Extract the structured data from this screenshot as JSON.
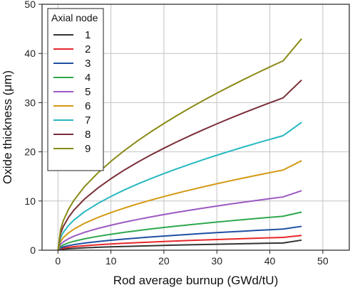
{
  "chart_data": {
    "type": "line",
    "xlabel": "Rod average burnup (GWd/tU)",
    "ylabel": "Oxide thickness (μm)",
    "xlim": [
      -3,
      55
    ],
    "ylim": [
      0,
      50
    ],
    "xticks": [
      0,
      10,
      20,
      30,
      40,
      50
    ],
    "yticks": [
      0,
      10,
      20,
      30,
      40,
      50
    ],
    "grid": true,
    "legend": {
      "title": "Axial node",
      "placement": "top-left"
    },
    "x": [
      0,
      0.5,
      1,
      2,
      3,
      5,
      7.5,
      10,
      12.5,
      15,
      17.5,
      20,
      22.5,
      25,
      27.5,
      30,
      32.5,
      35,
      37.5,
      40,
      42.5,
      46
    ],
    "series": [
      {
        "name": "1",
        "color": "#333333",
        "values": [
          0,
          0.15,
          0.22,
          0.3,
          0.37,
          0.48,
          0.59,
          0.68,
          0.76,
          0.84,
          0.91,
          0.97,
          1.04,
          1.1,
          1.16,
          1.21,
          1.27,
          1.32,
          1.37,
          1.42,
          1.47,
          2.05
        ]
      },
      {
        "name": "2",
        "color": "#e8272b",
        "values": [
          0,
          0.31,
          0.44,
          0.6,
          0.72,
          0.91,
          1.1,
          1.26,
          1.4,
          1.53,
          1.65,
          1.77,
          1.88,
          1.98,
          2.08,
          2.17,
          2.26,
          2.35,
          2.44,
          2.52,
          2.6,
          3.0
        ]
      },
      {
        "name": "3",
        "color": "#1f4fa3",
        "values": [
          0,
          0.47,
          0.67,
          0.93,
          1.13,
          1.44,
          1.75,
          2.02,
          2.26,
          2.48,
          2.69,
          2.88,
          3.06,
          3.24,
          3.41,
          3.57,
          3.72,
          3.87,
          4.02,
          4.16,
          4.3,
          4.85
        ]
      },
      {
        "name": "4",
        "color": "#2ea84f",
        "values": [
          0,
          0.75,
          1.07,
          1.49,
          1.81,
          2.31,
          2.81,
          3.24,
          3.63,
          3.98,
          4.31,
          4.62,
          4.91,
          5.19,
          5.46,
          5.72,
          5.97,
          6.21,
          6.45,
          6.68,
          6.9,
          7.75
        ]
      },
      {
        "name": "5",
        "color": "#9b59c2",
        "values": [
          0,
          1.18,
          1.68,
          2.34,
          2.84,
          3.63,
          4.41,
          5.08,
          5.69,
          6.24,
          6.76,
          7.25,
          7.71,
          8.15,
          8.57,
          8.98,
          9.37,
          9.75,
          10.12,
          10.48,
          10.83,
          12.1
        ]
      },
      {
        "name": "6",
        "color": "#d39a14",
        "values": [
          0,
          1.78,
          2.53,
          3.52,
          4.28,
          5.46,
          6.63,
          7.65,
          8.56,
          9.4,
          10.17,
          10.9,
          11.6,
          12.26,
          12.9,
          13.51,
          14.1,
          14.67,
          15.23,
          15.77,
          16.29,
          18.2
        ]
      },
      {
        "name": "7",
        "color": "#26b8c0",
        "values": [
          0,
          2.54,
          3.61,
          5.03,
          6.11,
          7.81,
          9.48,
          10.93,
          12.24,
          13.43,
          14.54,
          15.58,
          16.57,
          17.52,
          18.43,
          19.31,
          20.15,
          20.97,
          21.76,
          22.53,
          23.28,
          26.0
        ]
      },
      {
        "name": "8",
        "color": "#7a2e38",
        "values": [
          0,
          3.38,
          4.81,
          6.69,
          8.13,
          10.39,
          12.61,
          14.54,
          16.28,
          17.87,
          19.34,
          20.73,
          22.05,
          23.31,
          24.52,
          25.69,
          26.81,
          27.9,
          28.95,
          29.98,
          30.97,
          34.6
        ]
      },
      {
        "name": "9",
        "color": "#8a8a16",
        "values": [
          0,
          4.2,
          5.98,
          8.32,
          10.11,
          12.91,
          15.67,
          18.07,
          20.23,
          22.21,
          24.04,
          25.76,
          27.4,
          28.97,
          30.48,
          31.92,
          33.32,
          34.67,
          35.98,
          37.26,
          38.49,
          43.0
        ]
      }
    ]
  }
}
